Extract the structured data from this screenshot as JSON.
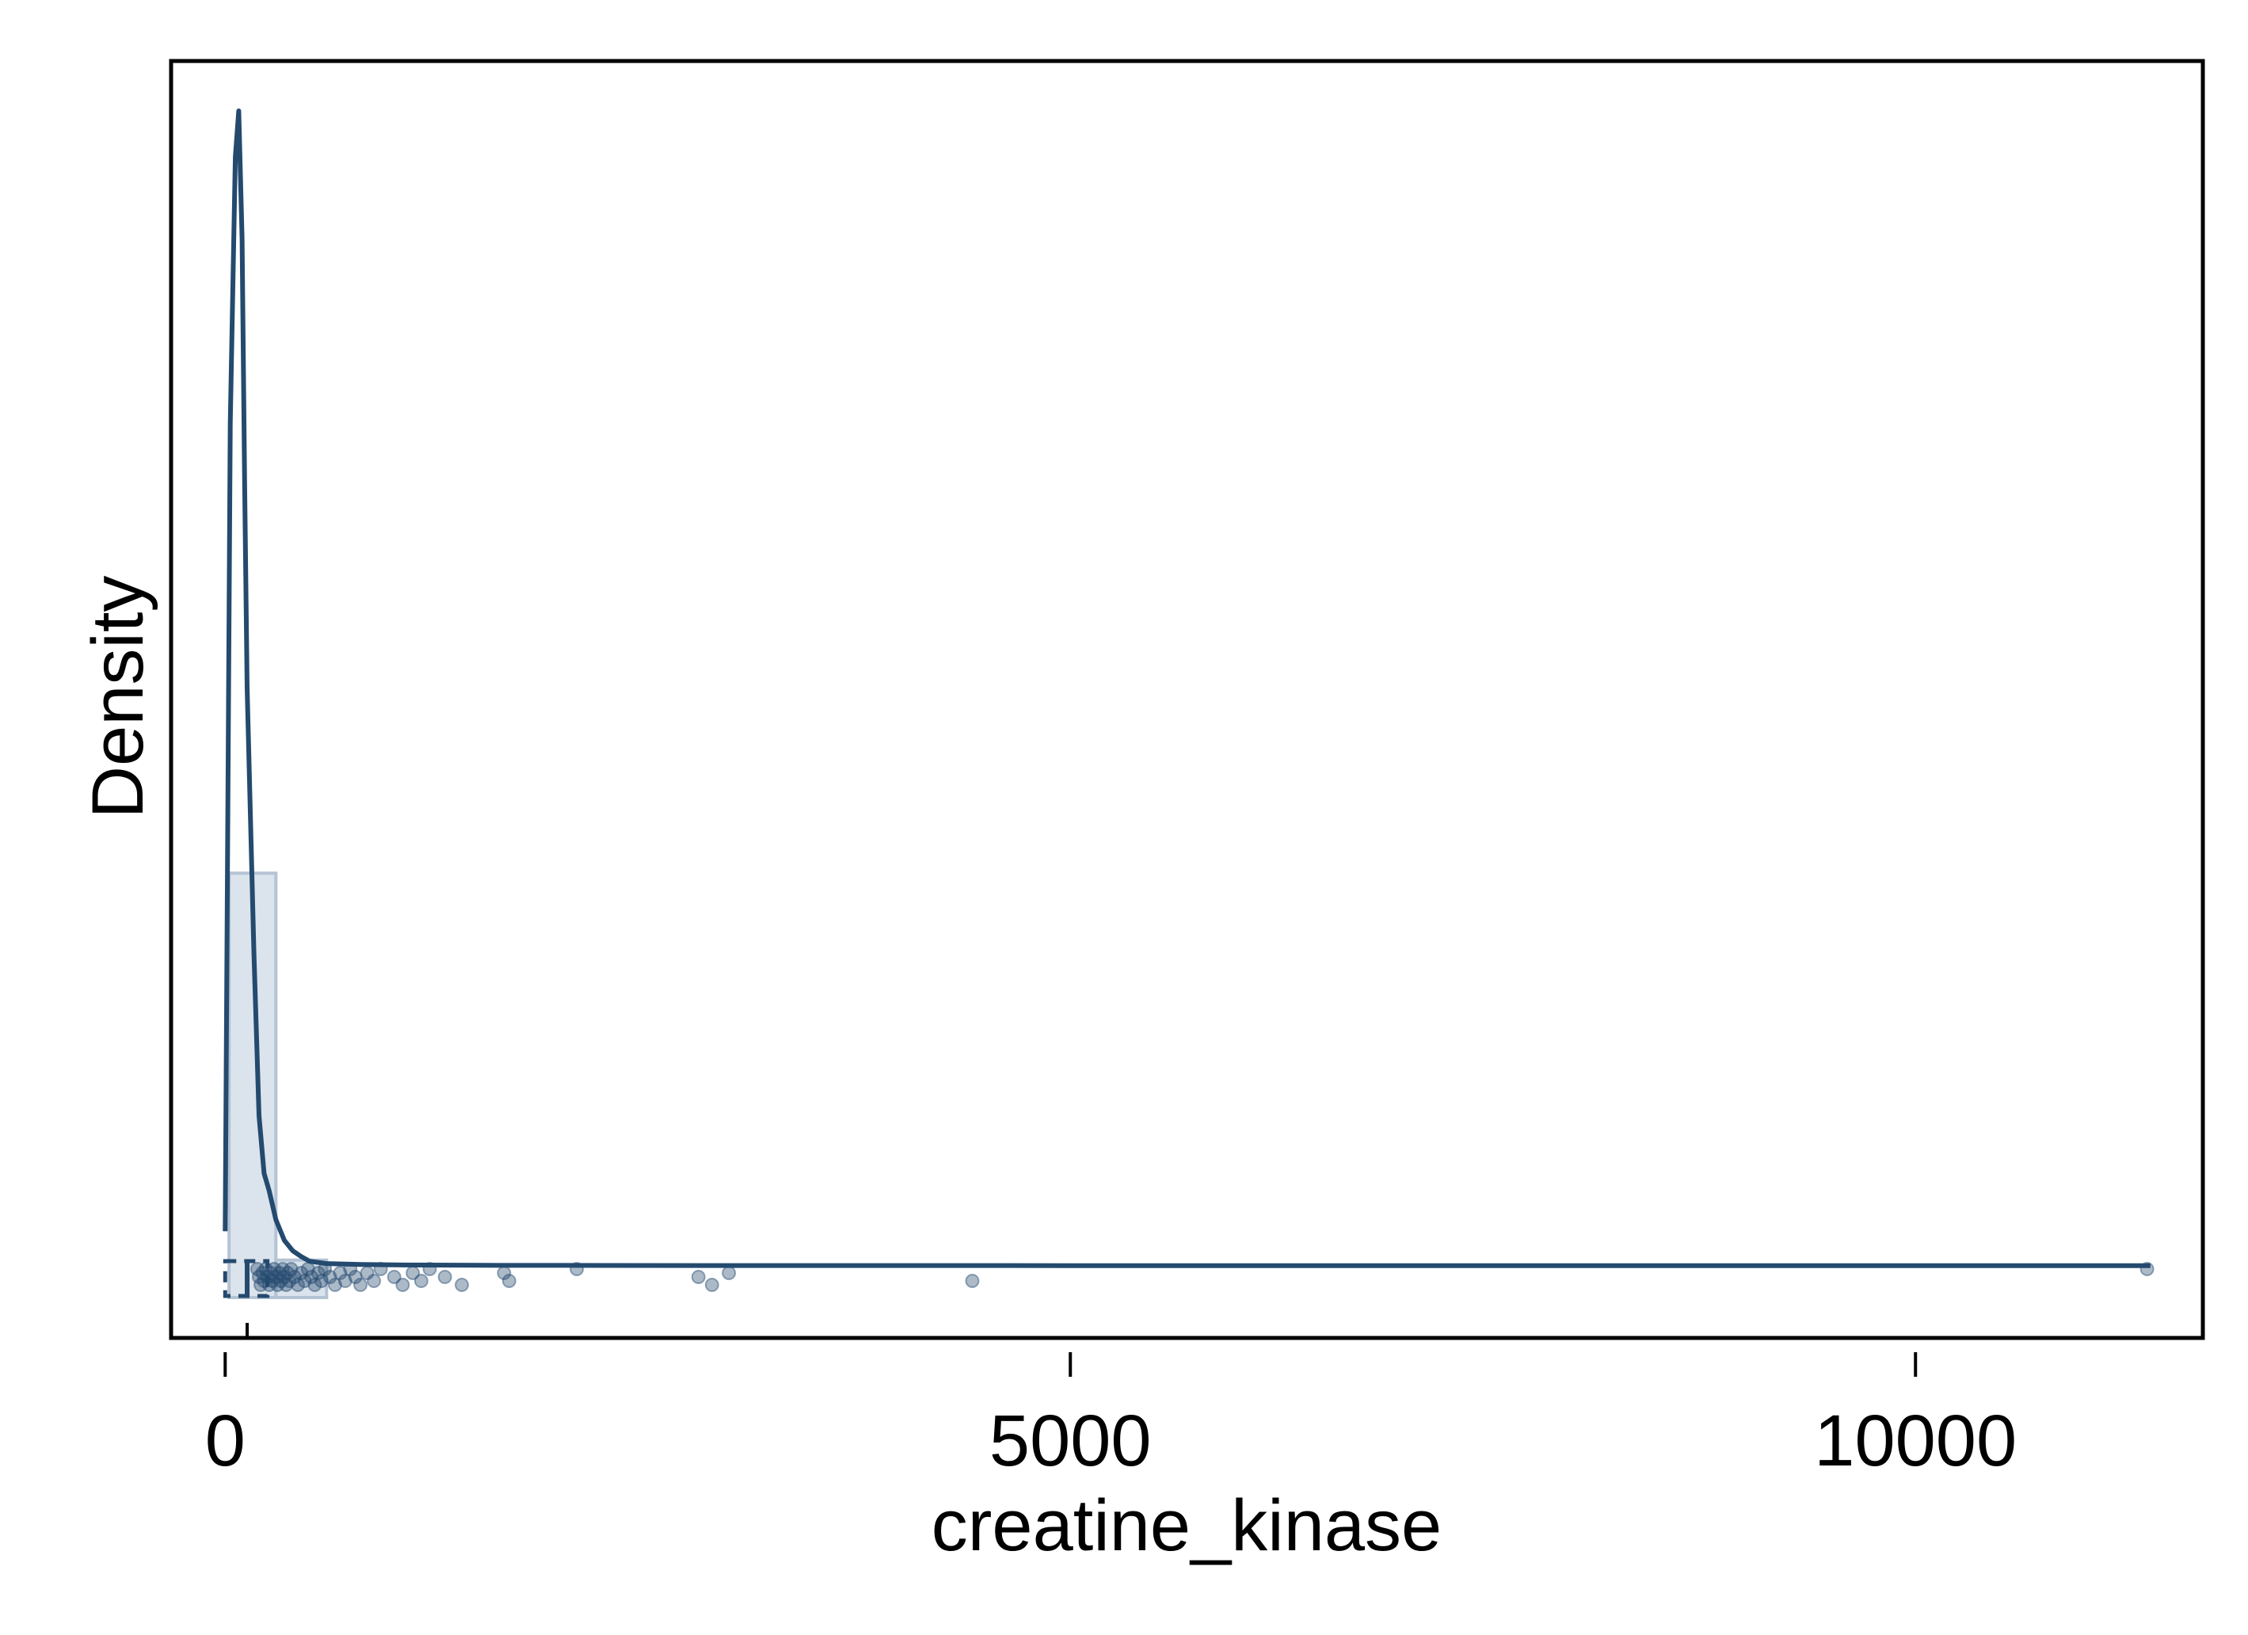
{
  "chart_data": {
    "type": "histogram+density",
    "title": "",
    "xlabel": "creatine_kinase",
    "ylabel": "Density",
    "xlim": [
      -320,
      11700
    ],
    "xticks": [
      {
        "value": 0,
        "label": "0"
      },
      {
        "value": 5000,
        "label": "5000"
      },
      {
        "value": 10000,
        "label": "10000"
      }
    ],
    "yticks_shown": false,
    "grid": false,
    "legend": "none",
    "colors": {
      "line": "#244a6e",
      "fill": "#dbe3ec",
      "fill_stroke": "#b4c3d4",
      "points": "#244a6e"
    },
    "histogram": {
      "bin_edges": [
        23,
        300,
        600
      ],
      "relative_heights": [
        0.34,
        0.005
      ]
    },
    "density_curve": {
      "x": [
        0,
        30,
        60,
        80,
        100,
        115,
        130,
        170,
        200,
        230,
        260,
        300,
        350,
        400,
        450,
        500,
        600,
        800,
        1000,
        1500,
        2000,
        3000,
        5000,
        8000,
        11390
      ],
      "relative_y": [
        0.03,
        0.73,
        0.96,
        1.0,
        0.89,
        0.68,
        0.5,
        0.27,
        0.13,
        0.08,
        0.065,
        0.04,
        0.022,
        0.013,
        0.008,
        0.004,
        0.002,
        0.0012,
        0.0008,
        0.0005,
        0.0004,
        0.0003,
        0.0002,
        0.0002,
        0.0002
      ]
    },
    "boxplot": {
      "q1": 0,
      "median": 130,
      "q3": 250
    },
    "rug_points": [
      190,
      200,
      210,
      220,
      230,
      240,
      250,
      260,
      270,
      280,
      290,
      300,
      310,
      320,
      330,
      340,
      350,
      360,
      370,
      380,
      390,
      410,
      430,
      450,
      470,
      490,
      510,
      530,
      550,
      570,
      590,
      620,
      650,
      680,
      710,
      740,
      770,
      800,
      840,
      880,
      920,
      1000,
      1050,
      1110,
      1160,
      1210,
      1300,
      1400,
      1650,
      1680,
      2080,
      2800,
      2880,
      2980,
      4420,
      11370
    ]
  }
}
